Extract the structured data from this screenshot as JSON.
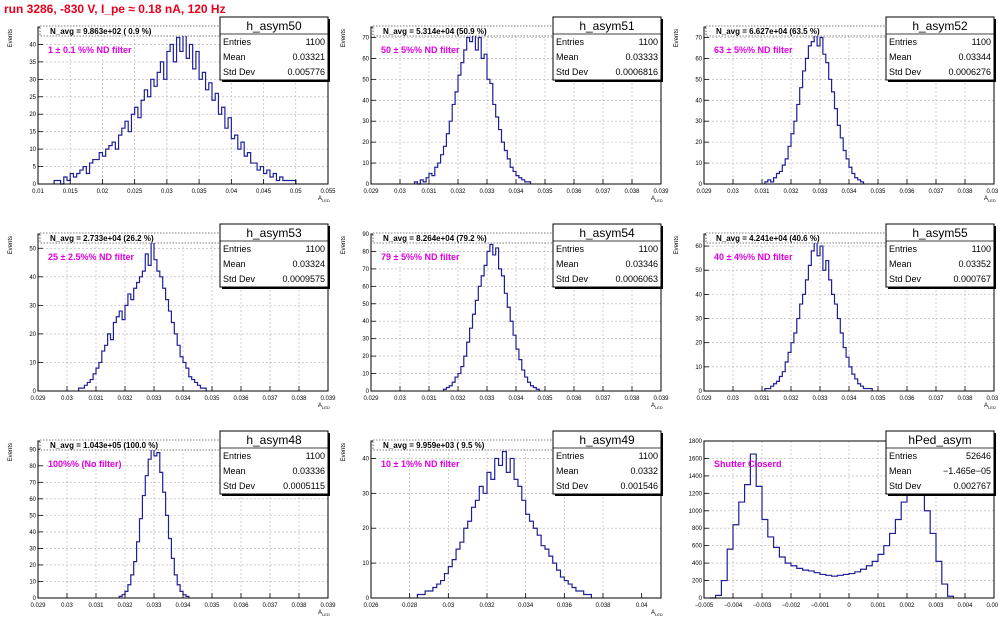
{
  "page_title": "run 3286,  -830 V, I_pe ≈ 0.18 nA, 120 Hz",
  "colors": {
    "title": "#e8001c",
    "hist": "#1f1f99",
    "annotation": "#e000e0",
    "grid": "#b0b0b0"
  },
  "chart_data": [
    {
      "type": "histogram",
      "stats_title": "h_asym50",
      "entries_label": "Entries",
      "entries": "1100",
      "mean_label": "Mean",
      "mean": "0.03321",
      "std_label": "Std Dev",
      "std": "0.005776",
      "navg_text": "N_avg = 9.863e+02 ( 0.9 %)",
      "annotation": "1 ± 0.1 %% ND filter",
      "xlabel": "A_{LED}",
      "ylabel": "Events",
      "xlim": [
        0.01,
        0.055
      ],
      "ylim": [
        0,
        45
      ],
      "grid": true,
      "xticks": [
        0.01,
        0.015,
        0.02,
        0.025,
        0.03,
        0.035,
        0.04,
        0.045,
        0.05,
        0.055
      ],
      "xtick_labels": [
        "0.01",
        "0.015",
        "0.02",
        "0.025",
        "0.03",
        "0.035",
        "0.04",
        "0.045",
        "0.05",
        "0.055"
      ],
      "yticks": [
        0,
        5,
        10,
        15,
        20,
        25,
        30,
        35,
        40
      ],
      "ytick_labels": [
        "0",
        "5",
        "10",
        "15",
        "20",
        "25",
        "30",
        "35",
        "40"
      ],
      "bins": {
        "start": 0.0125,
        "width": 0.0005,
        "values": [
          1,
          1,
          0,
          2,
          1,
          3,
          2,
          3,
          4,
          5,
          3,
          6,
          7,
          7,
          9,
          8,
          10,
          11,
          12,
          10,
          14,
          16,
          18,
          15,
          20,
          22,
          19,
          24,
          27,
          25,
          30,
          28,
          32,
          35,
          30,
          38,
          40,
          35,
          42,
          38,
          44,
          36,
          40,
          33,
          38,
          30,
          32,
          27,
          29,
          24,
          26,
          20,
          22,
          16,
          19,
          13,
          14,
          10,
          12,
          8,
          9,
          6,
          6,
          4,
          5,
          3,
          4,
          2,
          3,
          1,
          2,
          1,
          1,
          1,
          1
        ]
      }
    },
    {
      "type": "histogram",
      "stats_title": "h_asym51",
      "entries_label": "Entries",
      "entries": "1100",
      "mean_label": "Mean",
      "mean": "0.03333",
      "std_label": "Std Dev",
      "std": "0.0006816",
      "navg_text": "N_avg = 5.314e+04 (50.9 %)",
      "annotation": "50 ± 5%% ND filter",
      "xlabel": "A_{LED}",
      "ylabel": "Events",
      "xlim": [
        0.029,
        0.039
      ],
      "ylim": [
        0,
        75
      ],
      "grid": true,
      "xticks": [
        0.029,
        0.03,
        0.031,
        0.032,
        0.033,
        0.034,
        0.035,
        0.036,
        0.037,
        0.038,
        0.039
      ],
      "xtick_labels": [
        "0.029",
        "0.03",
        "0.031",
        "0.032",
        "0.033",
        "0.034",
        "0.035",
        "0.036",
        "0.037",
        "0.038",
        "0.039"
      ],
      "yticks": [
        0,
        10,
        20,
        30,
        40,
        50,
        60,
        70
      ],
      "ytick_labels": [
        "0",
        "10",
        "20",
        "30",
        "40",
        "50",
        "60",
        "70"
      ],
      "bins": {
        "start": 0.0305,
        "width": 0.0001,
        "values": [
          1,
          0,
          2,
          1,
          3,
          5,
          4,
          8,
          10,
          14,
          18,
          24,
          30,
          38,
          44,
          52,
          58,
          64,
          70,
          68,
          72,
          64,
          70,
          60,
          62,
          50,
          48,
          38,
          32,
          26,
          20,
          16,
          12,
          8,
          6,
          4,
          3,
          2,
          1,
          1
        ]
      }
    },
    {
      "type": "histogram",
      "stats_title": "h_asym52",
      "entries_label": "Entries",
      "entries": "1100",
      "mean_label": "Mean",
      "mean": "0.03344",
      "std_label": "Std Dev",
      "std": "0.0006276",
      "navg_text": "N_avg = 6.627e+04 (63.5 %)",
      "annotation": "63 ± 5%% ND filter",
      "xlabel": "A_{LED}",
      "ylabel": "Events",
      "xlim": [
        0.029,
        0.039
      ],
      "ylim": [
        0,
        75
      ],
      "grid": true,
      "xticks": [
        0.029,
        0.03,
        0.031,
        0.032,
        0.033,
        0.034,
        0.035,
        0.036,
        0.037,
        0.038,
        0.039
      ],
      "xtick_labels": [
        "0.029",
        "0.03",
        "0.031",
        "0.032",
        "0.033",
        "0.034",
        "0.035",
        "0.036",
        "0.037",
        "0.038",
        "0.039"
      ],
      "yticks": [
        0,
        10,
        20,
        30,
        40,
        50,
        60,
        70
      ],
      "ytick_labels": [
        "0",
        "10",
        "20",
        "30",
        "40",
        "50",
        "60",
        "70"
      ],
      "bins": {
        "start": 0.0311,
        "width": 0.0001,
        "values": [
          1,
          2,
          1,
          3,
          5,
          6,
          9,
          12,
          18,
          24,
          30,
          38,
          46,
          54,
          60,
          66,
          68,
          72,
          66,
          70,
          62,
          58,
          50,
          44,
          36,
          28,
          22,
          16,
          12,
          8,
          5,
          3,
          2,
          1
        ]
      }
    },
    {
      "type": "histogram",
      "stats_title": "h_asym53",
      "entries_label": "Entries",
      "entries": "1100",
      "mean_label": "Mean",
      "mean": "0.03324",
      "std_label": "Std Dev",
      "std": "0.0009575",
      "navg_text": "N_avg = 2.733e+04 (26.2 %)",
      "annotation": "25 ± 2.5%% ND filter",
      "xlabel": "A_{LED}",
      "ylabel": "Events",
      "xlim": [
        0.029,
        0.039
      ],
      "ylim": [
        0,
        55
      ],
      "grid": true,
      "xticks": [
        0.029,
        0.03,
        0.031,
        0.032,
        0.033,
        0.034,
        0.035,
        0.036,
        0.037,
        0.038,
        0.039
      ],
      "xtick_labels": [
        "0.029",
        "0.03",
        "0.031",
        "0.032",
        "0.033",
        "0.034",
        "0.035",
        "0.036",
        "0.037",
        "0.038",
        "0.039"
      ],
      "yticks": [
        0,
        10,
        20,
        30,
        40,
        50
      ],
      "ytick_labels": [
        "0",
        "10",
        "20",
        "30",
        "40",
        "50"
      ],
      "bins": {
        "start": 0.0304,
        "width": 0.0001,
        "values": [
          1,
          1,
          2,
          3,
          4,
          6,
          8,
          10,
          14,
          16,
          20,
          18,
          24,
          26,
          28,
          25,
          30,
          34,
          32,
          36,
          38,
          40,
          42,
          48,
          44,
          52,
          46,
          42,
          40,
          36,
          32,
          28,
          24,
          20,
          16,
          12,
          10,
          8,
          5,
          4,
          3,
          2,
          1,
          1
        ]
      }
    },
    {
      "type": "histogram",
      "stats_title": "h_asym54",
      "entries_label": "Entries",
      "entries": "1100",
      "mean_label": "Mean",
      "mean": "0.03346",
      "std_label": "Std Dev",
      "std": "0.0006063",
      "navg_text": "N_avg = 8.264e+04 (79.2 %)",
      "annotation": "79 ± 5%% ND filter",
      "xlabel": "A_{LED}",
      "ylabel": "Events",
      "xlim": [
        0.029,
        0.039
      ],
      "ylim": [
        0,
        90
      ],
      "grid": true,
      "xticks": [
        0.029,
        0.03,
        0.031,
        0.032,
        0.033,
        0.034,
        0.035,
        0.036,
        0.037,
        0.038,
        0.039
      ],
      "xtick_labels": [
        "0.029",
        "0.03",
        "0.031",
        "0.032",
        "0.033",
        "0.034",
        "0.035",
        "0.036",
        "0.037",
        "0.038",
        "0.039"
      ],
      "yticks": [
        0,
        10,
        20,
        30,
        40,
        50,
        60,
        70,
        80,
        90
      ],
      "ytick_labels": [
        "0",
        "10",
        "20",
        "30",
        "40",
        "50",
        "60",
        "70",
        "80",
        "90"
      ],
      "bins": {
        "start": 0.0315,
        "width": 0.0001,
        "values": [
          1,
          2,
          3,
          5,
          8,
          10,
          14,
          20,
          28,
          36,
          44,
          52,
          60,
          66,
          72,
          80,
          84,
          78,
          82,
          70,
          66,
          56,
          48,
          40,
          32,
          24,
          18,
          12,
          8,
          5,
          3,
          2,
          1
        ]
      }
    },
    {
      "type": "histogram",
      "stats_title": "h_asym55",
      "entries_label": "Entries",
      "entries": "1100",
      "mean_label": "Mean",
      "mean": "0.03352",
      "std_label": "Std Dev",
      "std": "0.000767",
      "navg_text": "N_avg = 4.241e+04 (40.6 %)",
      "annotation": "40 ± 4%% ND filter",
      "xlabel": "A_{LED}",
      "ylabel": "Events",
      "xlim": [
        0.029,
        0.039
      ],
      "ylim": [
        0,
        65
      ],
      "grid": true,
      "xticks": [
        0.029,
        0.03,
        0.031,
        0.032,
        0.033,
        0.034,
        0.035,
        0.036,
        0.037,
        0.038,
        0.039
      ],
      "xtick_labels": [
        "0.029",
        "0.03",
        "0.031",
        "0.032",
        "0.033",
        "0.034",
        "0.035",
        "0.036",
        "0.037",
        "0.038",
        "0.039"
      ],
      "yticks": [
        0,
        10,
        20,
        30,
        40,
        50,
        60
      ],
      "ytick_labels": [
        "0",
        "10",
        "20",
        "30",
        "40",
        "50",
        "60"
      ],
      "bins": {
        "start": 0.0311,
        "width": 0.0001,
        "values": [
          1,
          1,
          2,
          3,
          4,
          6,
          8,
          12,
          16,
          20,
          24,
          30,
          36,
          40,
          46,
          52,
          58,
          62,
          56,
          60,
          50,
          54,
          46,
          40,
          36,
          30,
          24,
          18,
          14,
          10,
          7,
          5,
          3,
          2,
          1,
          1,
          1
        ]
      }
    },
    {
      "type": "histogram",
      "stats_title": "h_asym48",
      "entries_label": "Entries",
      "entries": "1100",
      "mean_label": "Mean",
      "mean": "0.03336",
      "std_label": "Std Dev",
      "std": "0.0005115",
      "navg_text": "N_avg = 1.043e+05 (100.0 %)",
      "annotation": "100%% (No filter)",
      "xlabel": "A_{LED}",
      "ylabel": "Events",
      "xlim": [
        0.029,
        0.039
      ],
      "ylim": [
        0,
        95
      ],
      "grid": true,
      "xticks": [
        0.029,
        0.03,
        0.031,
        0.032,
        0.033,
        0.034,
        0.035,
        0.036,
        0.037,
        0.038,
        0.039
      ],
      "xtick_labels": [
        "0.029",
        "0.03",
        "0.031",
        "0.032",
        "0.033",
        "0.034",
        "0.035",
        "0.036",
        "0.037",
        "0.038",
        "0.039"
      ],
      "yticks": [
        0,
        10,
        20,
        30,
        40,
        50,
        60,
        70,
        80,
        90
      ],
      "ytick_labels": [
        "0",
        "10",
        "20",
        "30",
        "40",
        "50",
        "60",
        "70",
        "80",
        "90"
      ],
      "bins": {
        "start": 0.0318,
        "width": 0.0001,
        "values": [
          1,
          2,
          4,
          8,
          14,
          22,
          34,
          48,
          62,
          74,
          84,
          90,
          86,
          88,
          76,
          64,
          50,
          36,
          24,
          14,
          8,
          4,
          2,
          1
        ]
      }
    },
    {
      "type": "histogram",
      "stats_title": "h_asym49",
      "entries_label": "Entries",
      "entries": "1100",
      "mean_label": "Mean",
      "mean": "0.0332",
      "std_label": "Std Dev",
      "std": "0.001546",
      "navg_text": "N_avg = 9.959e+03 ( 9.5 %)",
      "annotation": "10 ± 1%% ND filter",
      "xlabel": "A_{LED}",
      "ylabel": "Events",
      "xlim": [
        0.026,
        0.041
      ],
      "ylim": [
        0,
        45
      ],
      "grid": true,
      "xticks": [
        0.026,
        0.028,
        0.03,
        0.032,
        0.034,
        0.036,
        0.038,
        0.04
      ],
      "xtick_labels": [
        "0.026",
        "0.028",
        "0.03",
        "0.032",
        "0.034",
        "0.036",
        "0.038",
        "0.04"
      ],
      "yticks": [
        0,
        10,
        20,
        30,
        40
      ],
      "ytick_labels": [
        "0",
        "10",
        "20",
        "30",
        "40"
      ],
      "bins": {
        "start": 0.0284,
        "width": 0.0002,
        "values": [
          1,
          1,
          2,
          2,
          3,
          4,
          5,
          7,
          9,
          11,
          14,
          16,
          20,
          22,
          26,
          28,
          32,
          30,
          36,
          34,
          40,
          38,
          42,
          36,
          40,
          34,
          32,
          28,
          24,
          22,
          20,
          18,
          15,
          14,
          12,
          10,
          8,
          6,
          5,
          4,
          3,
          2,
          2,
          1,
          1
        ]
      }
    },
    {
      "type": "histogram",
      "stats_title": "hPed_asym",
      "entries_label": "Entries",
      "entries": "52646",
      "mean_label": "Mean",
      "mean": "−1.465e−05",
      "std_label": "Std Dev",
      "std": "0.002767",
      "navg_text": "",
      "annotation": "Shutter Closerd",
      "xlabel": "",
      "ylabel": "",
      "xlim": [
        -0.005,
        0.005
      ],
      "ylim": [
        0,
        1800
      ],
      "grid": true,
      "xticks": [
        -0.005,
        -0.004,
        -0.003,
        -0.002,
        -0.001,
        0,
        0.001,
        0.002,
        0.003,
        0.004,
        0.005
      ],
      "xtick_labels": [
        "−0.005",
        "−0.004",
        "−0.003",
        "−0.002",
        "−0.001",
        "0",
        "0.001",
        "0.002",
        "0.003",
        "0.004",
        "0.005"
      ],
      "yticks": [
        0,
        200,
        400,
        600,
        800,
        1000,
        1200,
        1400,
        1600,
        1800
      ],
      "ytick_labels": [
        "0",
        "200",
        "400",
        "600",
        "800",
        "1000",
        "1200",
        "1400",
        "1600",
        "1800"
      ],
      "bins": {
        "start": -0.0048,
        "width": 0.0002,
        "values": [
          0,
          30,
          200,
          560,
          840,
          1100,
          1300,
          1650,
          1280,
          900,
          700,
          580,
          470,
          400,
          370,
          340,
          320,
          310,
          290,
          270,
          260,
          250,
          260,
          270,
          280,
          300,
          330,
          370,
          420,
          500,
          600,
          740,
          900,
          1100,
          1300,
          1620,
          1300,
          1000,
          740,
          420,
          160,
          20
        ]
      }
    }
  ]
}
